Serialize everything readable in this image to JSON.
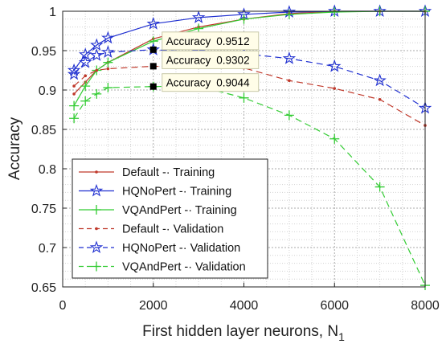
{
  "chart_data": {
    "type": "line",
    "xlabel": "First hidden layer neurons, N",
    "xlabel_subscript": "1",
    "ylabel": "Accuracy",
    "xlim": [
      0,
      8000
    ],
    "ylim": [
      0.65,
      1.0
    ],
    "x_ticks": [
      "0",
      "2000",
      "4000",
      "6000",
      "8000"
    ],
    "y_ticks": [
      "0.65",
      "0.7",
      "0.75",
      "0.8",
      "0.85",
      "0.9",
      "0.95",
      "1"
    ],
    "grid": "dotted major and minor",
    "legend_position": "bottom-left",
    "x": [
      250,
      500,
      750,
      1000,
      2000,
      3000,
      4000,
      5000,
      6000,
      7000,
      8000
    ],
    "series": [
      {
        "name": "Default  -· Training",
        "color": "#c0392b",
        "marker": "dot",
        "dash": "solid",
        "values": [
          0.895,
          0.91,
          0.925,
          0.935,
          0.965,
          0.98,
          0.99,
          0.997,
          1.0,
          1.0,
          1.0
        ]
      },
      {
        "name": "HQNoPert -· Training",
        "color": "#1f2fd0",
        "marker": "star",
        "dash": "solid",
        "values": [
          0.925,
          0.945,
          0.957,
          0.966,
          0.984,
          0.992,
          0.996,
          0.999,
          1.0,
          1.0,
          1.0
        ]
      },
      {
        "name": "VQAndPert -· Training",
        "color": "#33cc33",
        "marker": "plus",
        "dash": "solid",
        "values": [
          0.88,
          0.905,
          0.925,
          0.935,
          0.962,
          0.978,
          0.99,
          0.996,
          0.999,
          1.0,
          1.0
        ]
      },
      {
        "name": "Default  -· Validation",
        "color": "#c0392b",
        "marker": "dot",
        "dash": "dashed",
        "values": [
          0.905,
          0.918,
          0.925,
          0.927,
          0.9302,
          0.929,
          0.928,
          0.912,
          0.902,
          0.888,
          0.855
        ]
      },
      {
        "name": "HQNoPert -· Validation",
        "color": "#1f2fd0",
        "marker": "star",
        "dash": "dashed",
        "values": [
          0.92,
          0.935,
          0.944,
          0.948,
          0.9512,
          0.948,
          0.946,
          0.94,
          0.93,
          0.912,
          0.877
        ]
      },
      {
        "name": "VQAndPert -· Validation",
        "color": "#33cc33",
        "marker": "plus",
        "dash": "dashed",
        "values": [
          0.864,
          0.886,
          0.895,
          0.903,
          0.9044,
          0.905,
          0.89,
          0.868,
          0.838,
          0.777,
          0.652
        ]
      }
    ],
    "datatips": [
      {
        "x": 2000,
        "y": 0.9512,
        "label": "Accuracy",
        "value": "0.9512"
      },
      {
        "x": 2000,
        "y": 0.9302,
        "label": "Accuracy",
        "value": "0.9302"
      },
      {
        "x": 2000,
        "y": 0.9044,
        "label": "Accuracy",
        "value": "0.9044"
      }
    ]
  }
}
